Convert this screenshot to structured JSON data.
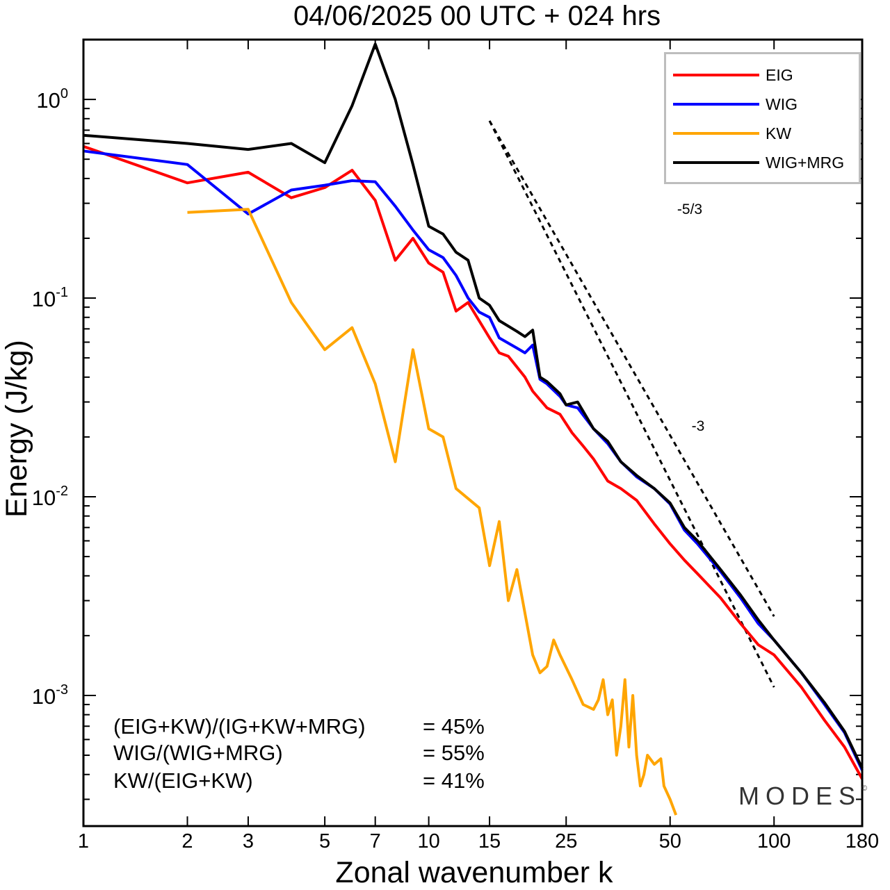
{
  "chart_data": {
    "type": "line",
    "title": "04/06/2025  00 UTC  + 024 hrs",
    "xlabel": "Zonal wavenumber k",
    "ylabel": "Energy (J/kg)",
    "xscale": "log",
    "yscale": "log",
    "xlim": [
      1,
      180
    ],
    "ylim": [
      0.00022,
      2.0
    ],
    "xticks": [
      1,
      2,
      3,
      5,
      7,
      10,
      15,
      25,
      50,
      100,
      180
    ],
    "yticks": [
      {
        "value": 1,
        "base": "10",
        "exp": "0"
      },
      {
        "value": 0.1,
        "base": "10",
        "exp": "-1"
      },
      {
        "value": 0.01,
        "base": "10",
        "exp": "-2"
      },
      {
        "value": 0.001,
        "base": "10",
        "exp": "-3"
      }
    ],
    "legend_position": "top-right",
    "grid": false,
    "series": [
      {
        "name": "EIG",
        "color": "#ff0000",
        "points": [
          [
            1,
            0.58
          ],
          [
            2,
            0.38
          ],
          [
            3,
            0.43
          ],
          [
            4,
            0.32
          ],
          [
            5,
            0.36
          ],
          [
            6,
            0.44
          ],
          [
            7,
            0.31
          ],
          [
            8,
            0.155
          ],
          [
            9,
            0.2
          ],
          [
            10,
            0.15
          ],
          [
            11,
            0.135
          ],
          [
            12,
            0.086
          ],
          [
            13,
            0.095
          ],
          [
            15,
            0.063
          ],
          [
            16,
            0.053
          ],
          [
            17,
            0.051
          ],
          [
            19,
            0.04
          ],
          [
            20,
            0.034
          ],
          [
            22,
            0.028
          ],
          [
            24,
            0.026
          ],
          [
            26,
            0.021
          ],
          [
            28,
            0.018
          ],
          [
            30,
            0.0155
          ],
          [
            33,
            0.012
          ],
          [
            36,
            0.011
          ],
          [
            40,
            0.0096
          ],
          [
            45,
            0.0073
          ],
          [
            50,
            0.0058
          ],
          [
            55,
            0.0048
          ],
          [
            60,
            0.0041
          ],
          [
            70,
            0.0031
          ],
          [
            80,
            0.0023
          ],
          [
            90,
            0.0018
          ],
          [
            100,
            0.0016
          ],
          [
            120,
            0.0011
          ],
          [
            140,
            0.00075
          ],
          [
            160,
            0.00055
          ],
          [
            180,
            0.00038
          ]
        ]
      },
      {
        "name": "WIG",
        "color": "#0000ff",
        "points": [
          [
            1,
            0.55
          ],
          [
            2,
            0.47
          ],
          [
            3,
            0.265
          ],
          [
            4,
            0.35
          ],
          [
            5,
            0.37
          ],
          [
            6,
            0.39
          ],
          [
            7,
            0.385
          ],
          [
            8,
            0.29
          ],
          [
            9,
            0.22
          ],
          [
            10,
            0.175
          ],
          [
            11,
            0.16
          ],
          [
            12,
            0.13
          ],
          [
            13,
            0.1
          ],
          [
            14,
            0.085
          ],
          [
            15,
            0.08
          ],
          [
            16,
            0.063
          ],
          [
            18,
            0.056
          ],
          [
            19,
            0.053
          ],
          [
            20,
            0.058
          ],
          [
            21,
            0.039
          ],
          [
            22,
            0.037
          ],
          [
            24,
            0.032
          ],
          [
            25,
            0.029
          ],
          [
            27,
            0.028
          ],
          [
            30,
            0.022
          ],
          [
            33,
            0.0185
          ],
          [
            36,
            0.015
          ],
          [
            40,
            0.0126
          ],
          [
            45,
            0.011
          ],
          [
            50,
            0.0092
          ],
          [
            55,
            0.0068
          ],
          [
            60,
            0.0058
          ],
          [
            70,
            0.0042
          ],
          [
            80,
            0.0031
          ],
          [
            90,
            0.0023
          ],
          [
            100,
            0.0019
          ],
          [
            120,
            0.0013
          ],
          [
            140,
            0.0009
          ],
          [
            160,
            0.00065
          ],
          [
            180,
            0.00042
          ]
        ]
      },
      {
        "name": "KW",
        "color": "#ffa500",
        "points": [
          [
            2,
            0.27
          ],
          [
            3,
            0.28
          ],
          [
            4,
            0.095
          ],
          [
            5,
            0.055
          ],
          [
            6,
            0.071
          ],
          [
            7,
            0.037
          ],
          [
            8,
            0.015
          ],
          [
            9,
            0.055
          ],
          [
            10,
            0.022
          ],
          [
            11,
            0.02
          ],
          [
            12,
            0.011
          ],
          [
            14,
            0.0088
          ],
          [
            15,
            0.0045
          ],
          [
            16,
            0.0075
          ],
          [
            17,
            0.003
          ],
          [
            18,
            0.0043
          ],
          [
            20,
            0.0016
          ],
          [
            21,
            0.0013
          ],
          [
            22,
            0.0014
          ],
          [
            23,
            0.0019
          ],
          [
            24,
            0.0016
          ],
          [
            26,
            0.0012
          ],
          [
            28,
            0.0009
          ],
          [
            30,
            0.00085
          ],
          [
            31,
            0.00095
          ],
          [
            32,
            0.0012
          ],
          [
            33,
            0.0008
          ],
          [
            34,
            0.00095
          ],
          [
            35,
            0.0005
          ],
          [
            36,
            0.0007
          ],
          [
            37,
            0.0012
          ],
          [
            38,
            0.00055
          ],
          [
            39,
            0.001
          ],
          [
            40,
            0.0005
          ],
          [
            41,
            0.00035
          ],
          [
            42,
            0.0004
          ],
          [
            43,
            0.0005
          ],
          [
            45,
            0.00045
          ],
          [
            47,
            0.00048
          ],
          [
            48,
            0.00035
          ],
          [
            50,
            0.0003
          ],
          [
            52,
            0.00025
          ]
        ]
      },
      {
        "name": "WIG+MRG",
        "color": "#000000",
        "points": [
          [
            1,
            0.66
          ],
          [
            2,
            0.6
          ],
          [
            3,
            0.56
          ],
          [
            4,
            0.6
          ],
          [
            5,
            0.48
          ],
          [
            6,
            0.93
          ],
          [
            7,
            1.9
          ],
          [
            8,
            1.0
          ],
          [
            9,
            0.47
          ],
          [
            10,
            0.23
          ],
          [
            11,
            0.21
          ],
          [
            12,
            0.17
          ],
          [
            13,
            0.155
          ],
          [
            14,
            0.1
          ],
          [
            15,
            0.092
          ],
          [
            16,
            0.077
          ],
          [
            18,
            0.068
          ],
          [
            19,
            0.064
          ],
          [
            20,
            0.069
          ],
          [
            21,
            0.04
          ],
          [
            22,
            0.038
          ],
          [
            24,
            0.033
          ],
          [
            25,
            0.029
          ],
          [
            27,
            0.03
          ],
          [
            30,
            0.022
          ],
          [
            33,
            0.019
          ],
          [
            36,
            0.015
          ],
          [
            40,
            0.0128
          ],
          [
            45,
            0.011
          ],
          [
            50,
            0.0093
          ],
          [
            55,
            0.007
          ],
          [
            60,
            0.006
          ],
          [
            70,
            0.0043
          ],
          [
            80,
            0.0032
          ],
          [
            90,
            0.0024
          ],
          [
            100,
            0.0019
          ],
          [
            120,
            0.0013
          ],
          [
            140,
            0.00092
          ],
          [
            160,
            0.00066
          ],
          [
            180,
            0.00043
          ]
        ]
      }
    ],
    "reference_lines": [
      {
        "label": "-5/3",
        "points": [
          [
            15,
            0.78
          ],
          [
            100,
            0.0011
          ]
        ]
      },
      {
        "label": "-3",
        "points": [
          [
            15,
            0.78
          ],
          [
            100,
            0.0025
          ]
        ]
      }
    ]
  },
  "legend": [
    {
      "label": "EIG",
      "color": "#ff0000"
    },
    {
      "label": "WIG",
      "color": "#0000ff"
    },
    {
      "label": "KW",
      "color": "#ffa500"
    },
    {
      "label": "WIG+MRG",
      "color": "#000000"
    }
  ],
  "ratios": [
    {
      "label": "(EIG+KW)/(IG+KW+MRG)",
      "value": "= 45%"
    },
    {
      "label": "WIG/(WIG+MRG)",
      "value": "= 55%"
    },
    {
      "label": "KW/(EIG+KW)",
      "value": "= 41%"
    }
  ],
  "brand": {
    "name": "MODES",
    "mark": "©"
  }
}
